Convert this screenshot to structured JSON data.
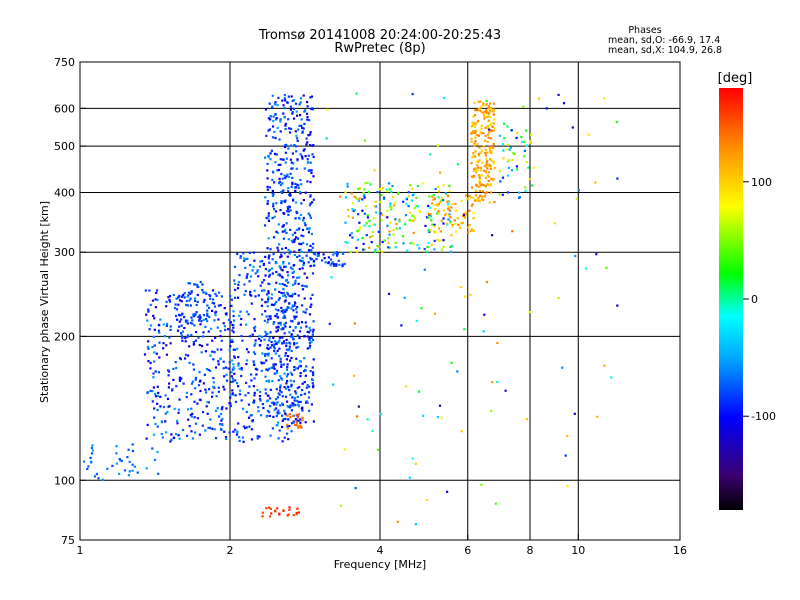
{
  "chart_data": {
    "type": "scatter",
    "title_line1": "Tromsø 20141008 20:24:00-20:25:43",
    "title_line2": "RwPretec (8p)",
    "xlabel": "Frequency [MHz]",
    "ylabel": "Stationary phase Virtual Height [km]",
    "x_scale": "log",
    "y_scale": "log",
    "xlim": [
      1,
      16
    ],
    "ylim": [
      75,
      750
    ],
    "x_ticks": [
      1,
      2,
      4,
      6,
      8,
      10,
      16
    ],
    "x_tick_labels": [
      "1",
      "2",
      "4",
      "6",
      "8",
      "10",
      "16"
    ],
    "y_ticks": [
      75,
      100,
      200,
      300,
      400,
      500,
      600,
      750
    ],
    "y_tick_labels": [
      "75",
      "100",
      "200",
      "300",
      "400",
      "500",
      "600",
      "750"
    ],
    "grid_x": [
      2,
      4,
      6,
      8,
      10
    ],
    "grid_y": [
      100,
      200,
      300,
      400,
      500,
      600
    ],
    "stats": {
      "heading": "Phases",
      "line_o": "mean, sd,O: -66.9, 17.4",
      "line_x": "mean, sd,X: 104.9, 26.8"
    },
    "colorbar": {
      "label": "[deg]",
      "min": -180,
      "max": 180,
      "ticks": [
        100,
        0,
        -100
      ],
      "tick_labels": [
        "100",
        "0",
        "-100"
      ]
    },
    "clusters": [
      {
        "f": [
          1.0,
          1.45
        ],
        "h": [
          100,
          120
        ],
        "phase": [
          -80,
          -50
        ],
        "n": 40
      },
      {
        "f": [
          1.35,
          2.05
        ],
        "h": [
          120,
          250
        ],
        "phase": [
          -120,
          -50
        ],
        "n": 360
      },
      {
        "f": [
          1.55,
          1.85
        ],
        "h": [
          210,
          260
        ],
        "phase": [
          -90,
          -70
        ],
        "n": 60
      },
      {
        "f": [
          2.0,
          2.7
        ],
        "h": [
          120,
          300
        ],
        "phase": [
          -110,
          -50
        ],
        "n": 320
      },
      {
        "f": [
          2.35,
          2.95
        ],
        "h": [
          130,
          640
        ],
        "phase": [
          -120,
          -50
        ],
        "n": 700
      },
      {
        "f": [
          2.9,
          3.4
        ],
        "h": [
          280,
          300
        ],
        "phase": [
          -110,
          -60
        ],
        "n": 40
      },
      {
        "f": [
          3.4,
          5.6
        ],
        "h": [
          300,
          420
        ],
        "phase": [
          -110,
          130
        ],
        "n": 220
      },
      {
        "f": [
          5.0,
          6.2
        ],
        "h": [
          330,
          400
        ],
        "phase": [
          80,
          140
        ],
        "n": 70
      },
      {
        "f": [
          6.1,
          6.8
        ],
        "h": [
          380,
          620
        ],
        "phase": [
          90,
          140
        ],
        "n": 220
      },
      {
        "f": [
          6.8,
          8.2
        ],
        "h": [
          380,
          560
        ],
        "phase": [
          -110,
          100
        ],
        "n": 50
      },
      {
        "f": [
          2.6,
          2.8
        ],
        "h": [
          128,
          138
        ],
        "phase": [
          130,
          150
        ],
        "n": 20
      },
      {
        "f": [
          2.3,
          2.75
        ],
        "h": [
          84,
          88
        ],
        "phase": [
          150,
          170
        ],
        "n": 24
      },
      {
        "f": [
          3.0,
          12.0
        ],
        "h": [
          80,
          650
        ],
        "phase": [
          -140,
          140
        ],
        "n": 110
      }
    ]
  }
}
